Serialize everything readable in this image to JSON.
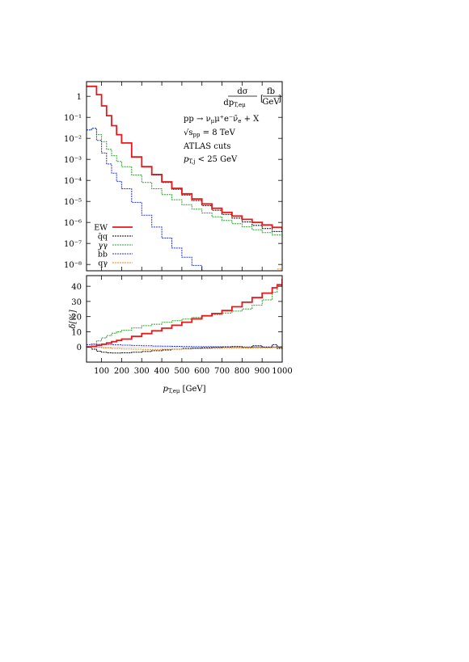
{
  "chart_data": [
    {
      "type": "line",
      "panel": "upper",
      "title": "",
      "ylabel": "dσ/dp_{T,eμ} [fb/GeV]",
      "yscale": "log",
      "ylim": [
        5e-09,
        5
      ],
      "xlim": [
        25,
        1000
      ],
      "grid": false,
      "legend_position": "bottom-left",
      "yticks": [
        "1",
        "10⁻¹",
        "10⁻²",
        "10⁻³",
        "10⁻⁴",
        "10⁻⁵",
        "10⁻⁶",
        "10⁻⁷",
        "10⁻⁸"
      ],
      "annotations": {
        "ylabel_num": "dσ",
        "ylabel_den": "dp",
        "ylabel_den_sub": "T,eμ",
        "ylabel_unit_num": "fb",
        "ylabel_unit_den": "GeV",
        "process": "pp → ν",
        "process_sub1": "μ",
        "process_mid": "μ⁺e⁻ν̄",
        "process_sub2": "e",
        "process_end": " + X",
        "energy_pre": "√s",
        "energy_sub": "pp",
        "energy_post": " = 8 TeV",
        "cuts": "ATLAS cuts",
        "jet_pre": "p",
        "jet_sub": "T,j",
        "jet_post": " < 25 GeV"
      },
      "series": [
        {
          "name": "EW",
          "color": "#e41a1c",
          "x": [
            25,
            50,
            75,
            100,
            125,
            150,
            175,
            200,
            250,
            300,
            350,
            400,
            450,
            500,
            550,
            600,
            650,
            700,
            750,
            800,
            850,
            900,
            950,
            1000
          ],
          "y": [
            3.0,
            3.0,
            1.2,
            0.35,
            0.12,
            0.04,
            0.015,
            0.006,
            0.0013,
            0.00045,
            0.00019,
            8.5e-05,
            4.2e-05,
            2.3e-05,
            1.3e-05,
            7.6e-06,
            4.7e-06,
            3e-06,
            2e-06,
            1.4e-06,
            1e-06,
            7.6e-07,
            5.8e-07,
            4.5e-07
          ]
        },
        {
          "name": "q̄q",
          "color": "#000000",
          "x": [
            25,
            50,
            75,
            100,
            125,
            150,
            175,
            200,
            250,
            300,
            350,
            400,
            450,
            500,
            550,
            600,
            650,
            700,
            750,
            800,
            850,
            900,
            950,
            1000
          ],
          "y": [
            3.0,
            3.0,
            1.2,
            0.35,
            0.12,
            0.04,
            0.015,
            0.006,
            0.0013,
            0.00044,
            0.00018,
            7.9e-05,
            3.8e-05,
            2e-05,
            1.1e-05,
            6.3e-06,
            3.8e-06,
            2.4e-06,
            1.6e-06,
            1.05e-06,
            7.2e-07,
            5.1e-07,
            3.7e-07,
            2.7e-07
          ]
        },
        {
          "name": "γγ",
          "color": "#2ca02c",
          "x": [
            25,
            50,
            75,
            100,
            125,
            150,
            175,
            200,
            250,
            300,
            350,
            400,
            450,
            500,
            550,
            600,
            650,
            700,
            750,
            800,
            850,
            900,
            950,
            1000
          ],
          "y": [
            0.025,
            0.03,
            0.015,
            0.007,
            0.003,
            0.0015,
            0.0008,
            0.00045,
            0.00018,
            8e-05,
            4e-05,
            2.1e-05,
            1.2e-05,
            7e-06,
            4.3e-06,
            2.8e-06,
            1.85e-06,
            1.25e-06,
            8.7e-07,
            6.2e-07,
            4.5e-07,
            3.3e-07,
            2.5e-07,
            1.9e-07
          ]
        },
        {
          "name": "b̄b",
          "color": "#2233dd",
          "x": [
            25,
            50,
            75,
            100,
            125,
            150,
            175,
            200,
            250,
            300,
            350,
            400,
            450,
            500,
            550,
            600,
            650
          ],
          "y": [
            0.025,
            0.03,
            0.008,
            0.002,
            0.0006,
            0.00022,
            9e-05,
            4e-05,
            9e-06,
            2.2e-06,
            6e-07,
            1.8e-07,
            6e-08,
            2.2e-08,
            9e-09,
            4.5e-09,
            2.5e-09
          ]
        },
        {
          "name": "qγ",
          "color": "#ff7f0e",
          "x": [
            975,
            1000
          ],
          "y": [
            6e-09,
            1.1e-08
          ]
        }
      ]
    },
    {
      "type": "line",
      "panel": "lower",
      "xlabel": "p_{T,eμ} [GeV]",
      "ylabel": "δ[%]",
      "xlim": [
        25,
        1000
      ],
      "ylim": [
        -10,
        47
      ],
      "xticks": [
        100,
        200,
        300,
        400,
        500,
        600,
        700,
        800,
        900,
        1000
      ],
      "yticks": [
        0,
        10,
        20,
        30,
        40
      ],
      "annotations": {
        "ylabel_text": "δ[%]",
        "xlabel_p": "p",
        "xlabel_sub": "T,eμ",
        "xlabel_unit": " [GeV]"
      },
      "series": [
        {
          "name": "EW",
          "color": "#e41a1c",
          "x": [
            25,
            50,
            75,
            100,
            125,
            150,
            175,
            200,
            250,
            300,
            350,
            400,
            450,
            500,
            550,
            600,
            650,
            700,
            750,
            800,
            850,
            900,
            950,
            975,
            1000
          ],
          "y": [
            0,
            0.4,
            1,
            1.8,
            2.6,
            3.5,
            4.3,
            5.2,
            7,
            8.8,
            10.6,
            12.4,
            14.3,
            16.3,
            18.5,
            20.5,
            22,
            24,
            26.5,
            29.5,
            32.5,
            35.5,
            39,
            41,
            45
          ]
        },
        {
          "name": "q̄q",
          "color": "#000000",
          "x": [
            25,
            50,
            75,
            100,
            125,
            150,
            175,
            200,
            250,
            300,
            350,
            400,
            450,
            500,
            550,
            600,
            650,
            700,
            750,
            800,
            850,
            900,
            950,
            975,
            1000
          ],
          "y": [
            0,
            -1.5,
            -2.8,
            -3.5,
            -3.9,
            -4,
            -4,
            -3.9,
            -3.5,
            -3,
            -2.5,
            -2,
            -1.5,
            -1,
            -0.8,
            -0.5,
            -0.3,
            0,
            0.3,
            -0.5,
            0.8,
            -0.2,
            1.5,
            -1,
            0.5
          ]
        },
        {
          "name": "γγ",
          "color": "#2ca02c",
          "x": [
            25,
            50,
            75,
            100,
            125,
            150,
            175,
            200,
            250,
            300,
            350,
            400,
            450,
            500,
            550,
            600,
            650,
            700,
            750,
            800,
            850,
            900,
            950,
            975,
            1000
          ],
          "y": [
            0,
            2,
            4,
            6,
            7.5,
            9,
            10,
            11,
            12.5,
            14,
            15,
            16.2,
            17.3,
            18.4,
            19.4,
            20.4,
            21.4,
            22.4,
            23.6,
            25,
            27.5,
            31,
            36,
            40,
            46
          ]
        },
        {
          "name": "b̄b",
          "color": "#2233dd",
          "x": [
            25,
            50,
            75,
            100,
            150,
            200,
            250,
            300,
            350,
            400,
            450,
            500,
            550,
            600,
            650,
            700,
            750,
            800,
            850,
            900,
            950,
            1000
          ],
          "y": [
            1.5,
            1.7,
            1.7,
            1.6,
            1.4,
            1.2,
            1,
            0.8,
            0.6,
            0.5,
            0.4,
            0.3,
            0.2,
            0.15,
            0.1,
            0.05,
            0.02,
            0,
            0,
            0,
            0,
            0
          ]
        },
        {
          "name": "qγ",
          "color": "#ff7f0e",
          "x": [
            25,
            50,
            100,
            150,
            200,
            250,
            300,
            350,
            400,
            450,
            500,
            550,
            600,
            650,
            700,
            750,
            800,
            850,
            900,
            950,
            1000
          ],
          "y": [
            0,
            -0.2,
            -0.6,
            -1,
            -1.3,
            -1.5,
            -1.6,
            -1.6,
            -1.5,
            -1.4,
            -1.3,
            -1.2,
            -1.1,
            -1,
            -0.9,
            -0.8,
            -0.7,
            -0.6,
            -0.5,
            -0.4,
            -0.3
          ]
        }
      ]
    }
  ]
}
